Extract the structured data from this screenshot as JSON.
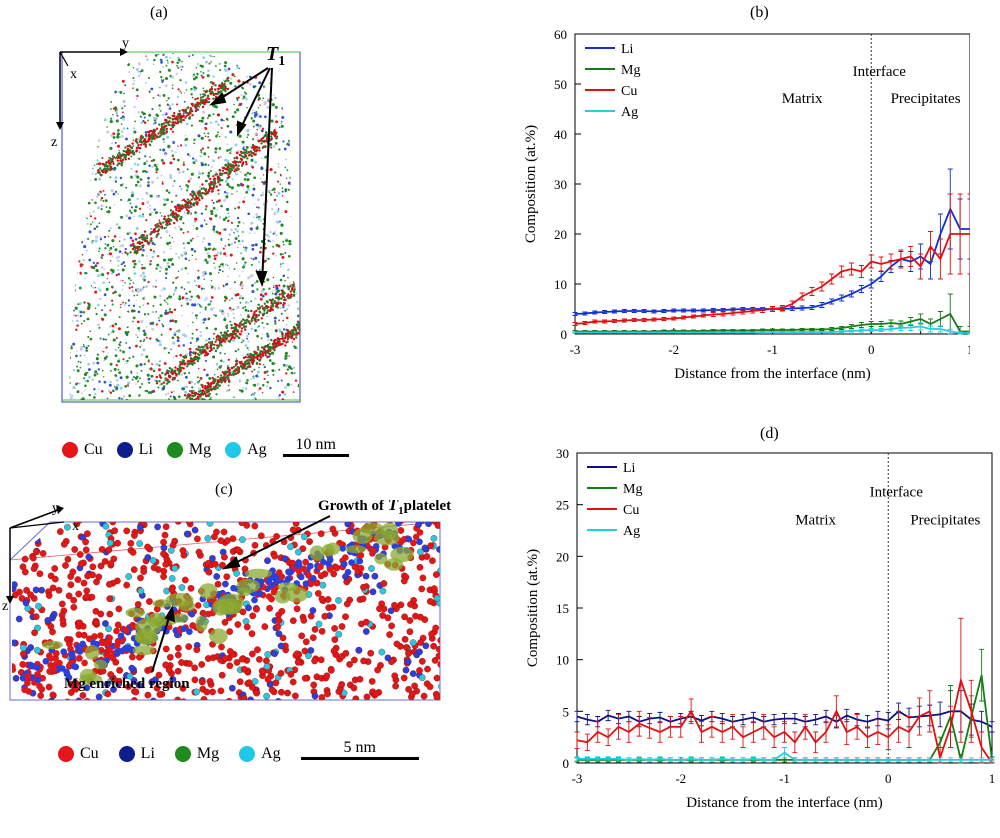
{
  "panels": {
    "a": {
      "label": "(a)",
      "annotation": "T",
      "annotation_sub": "1",
      "axes": {
        "y": "y",
        "x": "x",
        "z": "z"
      },
      "legend": [
        {
          "name": "Cu",
          "color": "#e8141b"
        },
        {
          "name": "Li",
          "color": "#0d1e8c"
        },
        {
          "name": "Mg",
          "color": "#1f8a1f"
        },
        {
          "name": "Ag",
          "color": "#1fc8e6"
        }
      ],
      "scale_label": "10 nm"
    },
    "c": {
      "label": "(c)",
      "growth_prefix": "Growth of ",
      "growth_T": "T",
      "growth_sub": "1",
      "growth_suffix": "platelet",
      "mg_label": "Mg enriched region",
      "axes": {
        "y": "y",
        "x": "x",
        "z": "z"
      },
      "legend": [
        {
          "name": "Cu",
          "color": "#e8141b"
        },
        {
          "name": "Li",
          "color": "#0d1e8c"
        },
        {
          "name": "Mg",
          "color": "#1f8a1f"
        },
        {
          "name": "Ag",
          "color": "#1fc8e6"
        }
      ],
      "scale_label": "5 nm"
    }
  },
  "chart_data": [
    {
      "panel": "(b)",
      "type": "line",
      "xlabel": "Distance from the interface (nm)",
      "ylabel": "Composition (at.%)",
      "xlim": [
        -3,
        1
      ],
      "ylim": [
        0,
        60
      ],
      "xticks": [
        -3,
        -2,
        -1,
        0,
        1
      ],
      "yticks": [
        0,
        10,
        20,
        30,
        40,
        50,
        60
      ],
      "interface_x": 0,
      "annotations": {
        "interface": "Interface",
        "matrix": "Matrix",
        "precipitates": "Precipitates"
      },
      "legend_position": "top-left",
      "x": [
        -3.0,
        -2.9,
        -2.8,
        -2.7,
        -2.6,
        -2.5,
        -2.4,
        -2.3,
        -2.2,
        -2.1,
        -2.0,
        -1.9,
        -1.8,
        -1.7,
        -1.6,
        -1.5,
        -1.4,
        -1.3,
        -1.2,
        -1.1,
        -1.0,
        -0.9,
        -0.8,
        -0.7,
        -0.6,
        -0.5,
        -0.4,
        -0.3,
        -0.2,
        -0.1,
        0.0,
        0.1,
        0.2,
        0.3,
        0.4,
        0.5,
        0.6,
        0.7,
        0.8,
        0.9,
        1.0
      ],
      "series": [
        {
          "name": "Li",
          "color": "#1030d0",
          "values": [
            4.0,
            4.1,
            4.3,
            4.4,
            4.5,
            4.6,
            4.6,
            4.6,
            4.5,
            4.6,
            4.7,
            4.7,
            4.7,
            4.7,
            4.8,
            4.8,
            4.9,
            5.0,
            5.0,
            5.0,
            5.0,
            5.0,
            5.1,
            5.2,
            5.3,
            5.8,
            6.5,
            7.2,
            8.0,
            9.0,
            10.0,
            11.5,
            13.5,
            15.0,
            14.5,
            15.5,
            14.0,
            20.0,
            25.0,
            21.0,
            21.0
          ],
          "errors": [
            0.3,
            0.3,
            0.3,
            0.3,
            0.3,
            0.3,
            0.3,
            0.3,
            0.3,
            0.3,
            0.3,
            0.3,
            0.3,
            0.3,
            0.3,
            0.3,
            0.3,
            0.3,
            0.3,
            0.3,
            0.4,
            0.4,
            0.4,
            0.4,
            0.4,
            0.5,
            0.5,
            0.6,
            0.6,
            0.7,
            0.8,
            1.0,
            1.2,
            1.5,
            2.0,
            2.5,
            3.0,
            4.0,
            8.0,
            6.0,
            6.0
          ]
        },
        {
          "name": "Mg",
          "color": "#1a7a1a",
          "values": [
            0.5,
            0.5,
            0.5,
            0.5,
            0.5,
            0.5,
            0.5,
            0.5,
            0.5,
            0.6,
            0.6,
            0.6,
            0.6,
            0.6,
            0.7,
            0.7,
            0.7,
            0.7,
            0.7,
            0.8,
            0.8,
            0.8,
            0.8,
            0.9,
            0.9,
            0.9,
            1.0,
            1.2,
            1.5,
            1.8,
            2.0,
            2.0,
            2.2,
            2.0,
            2.5,
            3.0,
            2.0,
            3.0,
            4.0,
            0.5,
            0.5
          ],
          "errors": [
            0.2,
            0.2,
            0.2,
            0.2,
            0.2,
            0.2,
            0.2,
            0.2,
            0.2,
            0.2,
            0.2,
            0.2,
            0.2,
            0.2,
            0.2,
            0.2,
            0.2,
            0.2,
            0.2,
            0.2,
            0.2,
            0.2,
            0.2,
            0.2,
            0.2,
            0.2,
            0.3,
            0.3,
            0.4,
            0.5,
            0.5,
            0.5,
            0.6,
            0.6,
            0.8,
            1.0,
            1.0,
            1.5,
            4.0,
            1.0,
            1.0
          ]
        },
        {
          "name": "Cu",
          "color": "#e01010",
          "values": [
            2.0,
            2.2,
            2.5,
            2.5,
            2.6,
            2.7,
            2.8,
            2.8,
            2.9,
            3.0,
            3.1,
            3.3,
            3.5,
            3.7,
            3.9,
            4.0,
            4.2,
            4.4,
            4.6,
            4.8,
            5.0,
            5.2,
            6.0,
            7.5,
            8.5,
            9.5,
            11.0,
            12.5,
            13.0,
            12.5,
            14.5,
            14.0,
            14.5,
            15.0,
            15.5,
            13.5,
            17.5,
            15.0,
            20.0,
            20.0,
            20.0
          ],
          "errors": [
            0.3,
            0.3,
            0.3,
            0.3,
            0.3,
            0.3,
            0.3,
            0.3,
            0.3,
            0.3,
            0.3,
            0.3,
            0.3,
            0.3,
            0.4,
            0.4,
            0.4,
            0.4,
            0.4,
            0.5,
            0.5,
            0.5,
            0.6,
            0.7,
            0.8,
            0.9,
            1.0,
            1.1,
            1.2,
            1.2,
            1.3,
            1.4,
            1.5,
            1.8,
            2.0,
            2.5,
            3.0,
            4.0,
            8.0,
            8.0,
            8.0
          ]
        },
        {
          "name": "Ag",
          "color": "#20d0e0",
          "values": [
            0.3,
            0.3,
            0.3,
            0.3,
            0.3,
            0.3,
            0.3,
            0.3,
            0.3,
            0.3,
            0.3,
            0.3,
            0.3,
            0.3,
            0.3,
            0.3,
            0.3,
            0.3,
            0.3,
            0.4,
            0.4,
            0.4,
            0.4,
            0.4,
            0.4,
            0.4,
            0.4,
            0.5,
            0.6,
            0.7,
            0.8,
            0.8,
            1.0,
            1.2,
            1.3,
            1.5,
            1.0,
            1.0,
            0.5,
            0.2,
            0.2
          ],
          "errors": [
            0.1,
            0.1,
            0.1,
            0.1,
            0.1,
            0.1,
            0.1,
            0.1,
            0.1,
            0.1,
            0.1,
            0.1,
            0.1,
            0.1,
            0.1,
            0.1,
            0.1,
            0.1,
            0.1,
            0.1,
            0.1,
            0.1,
            0.1,
            0.1,
            0.1,
            0.1,
            0.1,
            0.2,
            0.2,
            0.3,
            0.3,
            0.3,
            0.4,
            0.5,
            0.6,
            0.7,
            0.6,
            0.6,
            0.4,
            0.2,
            0.2
          ]
        }
      ]
    },
    {
      "panel": "(d)",
      "type": "line",
      "xlabel": "Distance from the interface (nm)",
      "ylabel": "Composition (at.%)",
      "xlim": [
        -3,
        1
      ],
      "ylim": [
        0,
        30
      ],
      "xticks": [
        -3,
        -2,
        -1,
        0,
        1
      ],
      "yticks": [
        0,
        5,
        10,
        15,
        20,
        25,
        30
      ],
      "interface_x": 0,
      "annotations": {
        "interface": "Interface",
        "matrix": "Matrix",
        "precipitates": "Precipitates"
      },
      "legend_position": "top-left",
      "x": [
        -3.0,
        -2.9,
        -2.8,
        -2.7,
        -2.6,
        -2.5,
        -2.4,
        -2.3,
        -2.2,
        -2.1,
        -2.0,
        -1.9,
        -1.8,
        -1.7,
        -1.6,
        -1.5,
        -1.4,
        -1.3,
        -1.2,
        -1.1,
        -1.0,
        -0.9,
        -0.8,
        -0.7,
        -0.6,
        -0.5,
        -0.4,
        -0.3,
        -0.2,
        -0.1,
        0.0,
        0.1,
        0.2,
        0.3,
        0.4,
        0.5,
        0.6,
        0.7,
        0.8,
        0.9,
        1.0
      ],
      "series": [
        {
          "name": "Li",
          "color": "#101080",
          "values": [
            4.5,
            4.2,
            4.0,
            4.6,
            4.3,
            4.5,
            4.0,
            4.3,
            4.4,
            4.0,
            4.3,
            4.5,
            4.1,
            4.5,
            4.3,
            4.0,
            4.2,
            4.4,
            4.0,
            4.2,
            4.3,
            4.3,
            4.0,
            4.2,
            4.5,
            4.0,
            4.6,
            4.2,
            4.0,
            4.3,
            4.1,
            5.0,
            4.4,
            4.5,
            4.6,
            4.7,
            5.0,
            5.0,
            4.2,
            4.0,
            3.5
          ],
          "errors": [
            0.5,
            0.5,
            0.5,
            0.5,
            0.5,
            0.5,
            0.5,
            0.5,
            0.5,
            0.5,
            0.5,
            0.5,
            0.5,
            0.5,
            0.5,
            0.5,
            0.5,
            0.5,
            0.5,
            0.5,
            0.5,
            0.5,
            0.5,
            0.5,
            0.6,
            0.6,
            0.6,
            0.6,
            0.6,
            0.7,
            0.8,
            0.8,
            0.9,
            1.0,
            1.0,
            1.2,
            2.0,
            2.0,
            1.5,
            1.0,
            0.5
          ]
        },
        {
          "name": "Mg",
          "color": "#108010",
          "values": [
            0.3,
            0.3,
            0.3,
            0.3,
            0.3,
            0.3,
            0.3,
            0.3,
            0.3,
            0.3,
            0.3,
            0.3,
            0.3,
            0.3,
            0.3,
            0.3,
            0.3,
            0.3,
            0.3,
            0.3,
            0.3,
            0.3,
            0.3,
            0.3,
            0.3,
            0.3,
            0.3,
            0.3,
            0.3,
            0.3,
            0.3,
            0.3,
            0.3,
            0.3,
            0.3,
            2.0,
            4.5,
            0.3,
            4.5,
            8.5,
            0.3
          ],
          "errors": [
            0.2,
            0.2,
            0.2,
            0.2,
            0.2,
            0.2,
            0.2,
            0.2,
            0.2,
            0.2,
            0.2,
            0.2,
            0.2,
            0.2,
            0.2,
            0.2,
            0.2,
            0.2,
            0.2,
            0.2,
            0.2,
            0.2,
            0.2,
            0.2,
            0.2,
            0.2,
            0.2,
            0.2,
            0.2,
            0.2,
            0.2,
            0.2,
            0.2,
            0.2,
            0.2,
            0.5,
            3.0,
            0.5,
            2.0,
            2.5,
            0.3
          ]
        },
        {
          "name": "Cu",
          "color": "#e01010",
          "values": [
            2.2,
            2.0,
            3.0,
            2.5,
            3.5,
            3.0,
            3.8,
            3.4,
            3.0,
            3.5,
            3.5,
            5.0,
            3.0,
            3.5,
            3.0,
            3.5,
            2.5,
            3.0,
            3.5,
            2.5,
            3.0,
            2.0,
            3.5,
            2.0,
            3.0,
            5.0,
            3.0,
            3.5,
            2.5,
            3.0,
            2.5,
            3.5,
            3.0,
            4.5,
            5.0,
            0.5,
            3.5,
            8.0,
            5.0,
            1.5,
            0.0
          ],
          "errors": [
            0.8,
            0.8,
            1.0,
            0.8,
            1.2,
            1.0,
            1.2,
            1.0,
            1.0,
            1.0,
            1.0,
            1.2,
            1.0,
            1.0,
            1.0,
            1.2,
            1.0,
            1.0,
            1.2,
            1.0,
            1.0,
            1.0,
            1.2,
            1.0,
            1.0,
            1.5,
            1.2,
            1.2,
            1.0,
            1.2,
            1.2,
            1.5,
            1.5,
            1.8,
            2.0,
            1.0,
            2.0,
            6.0,
            3.0,
            1.5,
            0.3
          ]
        },
        {
          "name": "Ag",
          "color": "#20d0e0",
          "values": [
            0.4,
            0.4,
            0.4,
            0.4,
            0.4,
            0.3,
            0.4,
            0.3,
            0.4,
            0.3,
            0.3,
            0.4,
            0.3,
            0.3,
            0.4,
            0.3,
            0.3,
            0.4,
            0.3,
            0.3,
            1.0,
            0.3,
            0.3,
            0.3,
            0.3,
            0.3,
            0.3,
            0.3,
            0.3,
            0.3,
            0.3,
            0.3,
            0.3,
            0.3,
            0.3,
            0.3,
            0.3,
            0.3,
            0.3,
            0.3,
            0.3
          ],
          "errors": [
            0.2,
            0.2,
            0.2,
            0.2,
            0.2,
            0.2,
            0.2,
            0.2,
            0.2,
            0.2,
            0.2,
            0.2,
            0.2,
            0.2,
            0.2,
            0.2,
            0.2,
            0.2,
            0.2,
            0.2,
            0.5,
            0.2,
            0.2,
            0.2,
            0.2,
            0.2,
            0.2,
            0.2,
            0.2,
            0.2,
            0.2,
            0.2,
            0.2,
            0.2,
            0.2,
            0.2,
            0.2,
            0.2,
            0.2,
            0.2,
            0.2
          ]
        }
      ]
    }
  ]
}
